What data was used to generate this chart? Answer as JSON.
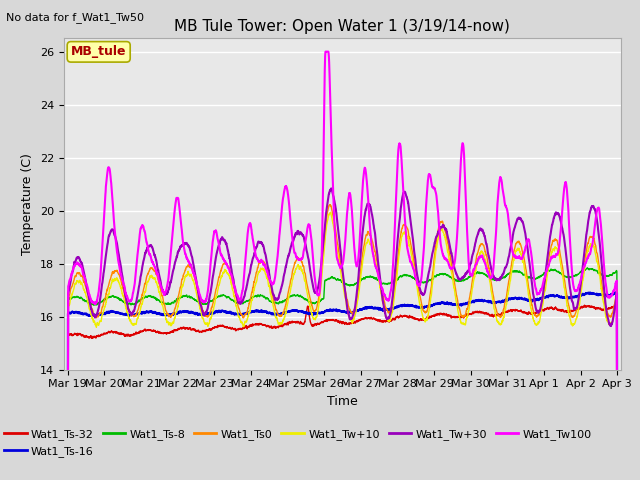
{
  "title": "MB Tule Tower: Open Water 1 (3/19/14-now)",
  "top_left_note": "No data for f_Wat1_Tw50",
  "xlabel": "Time",
  "ylabel": "Temperature (C)",
  "ylim": [
    14,
    26.5
  ],
  "yticks": [
    14,
    16,
    18,
    20,
    22,
    24,
    26
  ],
  "x_tick_labels": [
    "Mar 19",
    "Mar 20",
    "Mar 21",
    "Mar 22",
    "Mar 23",
    "Mar 24",
    "Mar 25",
    "Mar 26",
    "Mar 27",
    "Mar 28",
    "Mar 29",
    "Mar 30",
    "Mar 31",
    "Apr 1",
    "Apr 2",
    "Apr 3"
  ],
  "legend_entries": [
    "Wat1_Ts-32",
    "Wat1_Ts-16",
    "Wat1_Ts-8",
    "Wat1_Ts0",
    "Wat1_Tw+10",
    "Wat1_Tw+30",
    "Wat1_Tw100"
  ],
  "line_colors": [
    "#dd0000",
    "#0000dd",
    "#00bb00",
    "#ff8800",
    "#eeee00",
    "#9900bb",
    "#ff00ff"
  ],
  "line_widths": [
    1.0,
    1.5,
    1.0,
    1.0,
    1.0,
    1.5,
    1.5
  ],
  "fig_bg_color": "#d8d8d8",
  "plot_bg_color": "#e8e8e8",
  "title_fontsize": 11,
  "axis_fontsize": 9,
  "tick_fontsize": 8,
  "legend_fontsize": 8,
  "grid_color": "#ffffff",
  "grid_linewidth": 1.0,
  "annotation_text": "MB_tule",
  "annotation_color": "#aa0000",
  "annotation_bg": "#ffffaa",
  "annotation_edge": "#aaaa00"
}
